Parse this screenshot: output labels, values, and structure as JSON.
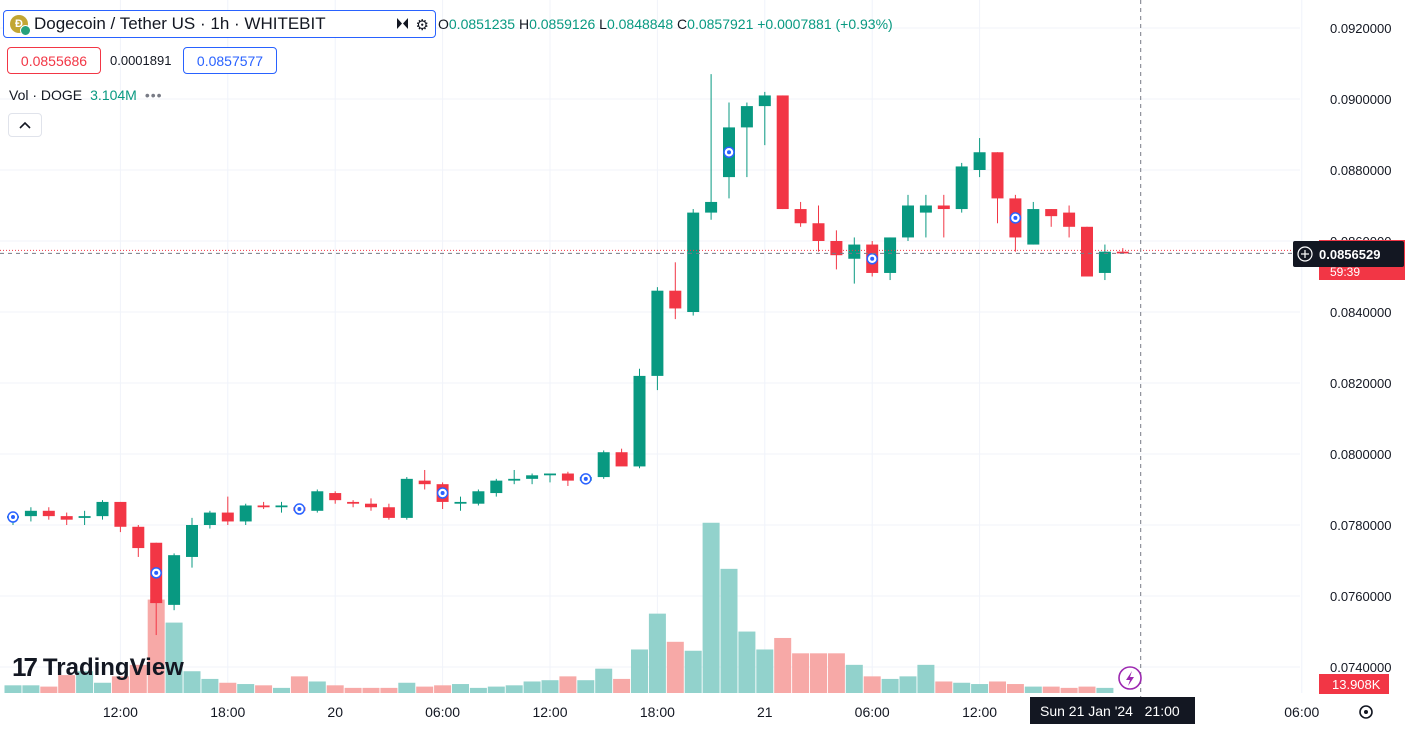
{
  "header": {
    "symbol_title": "Dogecoin / Tether US · 1h · WHITEBIT",
    "symbol_icon": "dogecoin-icon",
    "ohlc": {
      "o_label": "O",
      "o": "0.0851235",
      "h_label": "H",
      "h": "0.0859126",
      "l_label": "L",
      "l": "0.0848848",
      "c_label": "C",
      "c": "0.0857921",
      "change": "+0.0007881 (+0.93%)"
    },
    "sell_price": "0.0855686",
    "spread": "0.0001891",
    "buy_price": "0.0857577",
    "volume_label": "Vol · DOGE",
    "volume_value": "3.104M",
    "dots": "•••"
  },
  "logo_text": "TradingView",
  "colors": {
    "up": "#089981",
    "down": "#f23645",
    "up_vol": "#92d2cc",
    "down_vol": "#f7a9a7",
    "grid": "#f0f3fa",
    "accent": "#2962ff"
  },
  "price_axis": {
    "ticks": [
      "0.0920000",
      "0.0900000",
      "0.0880000",
      "0.0860000",
      "0.0840000",
      "0.0820000",
      "0.0800000",
      "0.0780000",
      "0.0760000",
      "0.0740000"
    ],
    "tick_values": [
      0.092,
      0.09,
      0.088,
      0.086,
      0.084,
      0.082,
      0.08,
      0.078,
      0.076,
      0.074
    ],
    "last_price": "0.0856529",
    "countdown": "59:39",
    "volume_badge": "13.908K"
  },
  "time_axis": {
    "labels": [
      {
        "text": "12:00",
        "hour": 6
      },
      {
        "text": "18:00",
        "hour": 12
      },
      {
        "text": "20",
        "hour": 18
      },
      {
        "text": "06:00",
        "hour": 24
      },
      {
        "text": "12:00",
        "hour": 30
      },
      {
        "text": "18:00",
        "hour": 36
      },
      {
        "text": "21",
        "hour": 42
      },
      {
        "text": "06:00",
        "hour": 48
      },
      {
        "text": "12:00",
        "hour": 54
      },
      {
        "text": "06:00",
        "hour": 72
      }
    ],
    "crosshair_label": "Sun 21 Jan '24   21:00",
    "crosshair_hour": 63
  },
  "chart_data": {
    "type": "candlestick",
    "symbol": "DOGE/USDT",
    "interval": "1h",
    "x_start": "19 Jan 06:00",
    "y_range": [
      0.0734,
      0.0924
    ],
    "candles": [
      {
        "o": 0.0782,
        "h": 0.07835,
        "l": 0.078,
        "c": 0.07825,
        "v": 6
      },
      {
        "o": 0.07825,
        "h": 0.0785,
        "l": 0.0781,
        "c": 0.0784,
        "v": 6
      },
      {
        "o": 0.0784,
        "h": 0.0785,
        "l": 0.07815,
        "c": 0.07825,
        "v": 5
      },
      {
        "o": 0.07825,
        "h": 0.07835,
        "l": 0.078,
        "c": 0.07815,
        "v": 14
      },
      {
        "o": 0.0782,
        "h": 0.0784,
        "l": 0.078,
        "c": 0.07825,
        "v": 17
      },
      {
        "o": 0.07825,
        "h": 0.0787,
        "l": 0.07815,
        "c": 0.07865,
        "v": 8
      },
      {
        "o": 0.07865,
        "h": 0.07865,
        "l": 0.0778,
        "c": 0.07795,
        "v": 13
      },
      {
        "o": 0.07795,
        "h": 0.078,
        "l": 0.0771,
        "c": 0.07735,
        "v": 22
      },
      {
        "o": 0.0775,
        "h": 0.0775,
        "l": 0.0749,
        "c": 0.0758,
        "v": 73
      },
      {
        "o": 0.07575,
        "h": 0.0772,
        "l": 0.0756,
        "c": 0.07715,
        "v": 55
      },
      {
        "o": 0.0771,
        "h": 0.0782,
        "l": 0.0768,
        "c": 0.078,
        "v": 17
      },
      {
        "o": 0.078,
        "h": 0.0784,
        "l": 0.0779,
        "c": 0.07835,
        "v": 11
      },
      {
        "o": 0.07835,
        "h": 0.0788,
        "l": 0.078,
        "c": 0.0781,
        "v": 8
      },
      {
        "o": 0.0781,
        "h": 0.0786,
        "l": 0.078,
        "c": 0.07855,
        "v": 7
      },
      {
        "o": 0.07855,
        "h": 0.07865,
        "l": 0.07845,
        "c": 0.0785,
        "v": 6
      },
      {
        "o": 0.0785,
        "h": 0.07865,
        "l": 0.07835,
        "c": 0.07855,
        "v": 4
      },
      {
        "o": 0.0785,
        "h": 0.0786,
        "l": 0.0783,
        "c": 0.0784,
        "v": 13
      },
      {
        "o": 0.0784,
        "h": 0.079,
        "l": 0.07835,
        "c": 0.07895,
        "v": 9
      },
      {
        "o": 0.0789,
        "h": 0.07895,
        "l": 0.0786,
        "c": 0.0787,
        "v": 6
      },
      {
        "o": 0.07865,
        "h": 0.0787,
        "l": 0.0785,
        "c": 0.0786,
        "v": 4
      },
      {
        "o": 0.0786,
        "h": 0.07875,
        "l": 0.0784,
        "c": 0.0785,
        "v": 4
      },
      {
        "o": 0.0785,
        "h": 0.0786,
        "l": 0.07815,
        "c": 0.0782,
        "v": 4
      },
      {
        "o": 0.0782,
        "h": 0.07935,
        "l": 0.07815,
        "c": 0.0793,
        "v": 8
      },
      {
        "o": 0.07925,
        "h": 0.07955,
        "l": 0.079,
        "c": 0.07915,
        "v": 5
      },
      {
        "o": 0.07915,
        "h": 0.0792,
        "l": 0.07845,
        "c": 0.07865,
        "v": 6
      },
      {
        "o": 0.0786,
        "h": 0.0788,
        "l": 0.0784,
        "c": 0.07865,
        "v": 7
      },
      {
        "o": 0.0786,
        "h": 0.079,
        "l": 0.07855,
        "c": 0.07895,
        "v": 4
      },
      {
        "o": 0.0789,
        "h": 0.0793,
        "l": 0.0788,
        "c": 0.07925,
        "v": 5
      },
      {
        "o": 0.07925,
        "h": 0.07955,
        "l": 0.07915,
        "c": 0.0793,
        "v": 6
      },
      {
        "o": 0.0793,
        "h": 0.07945,
        "l": 0.07915,
        "c": 0.0794,
        "v": 9
      },
      {
        "o": 0.0794,
        "h": 0.07945,
        "l": 0.0792,
        "c": 0.07945,
        "v": 10
      },
      {
        "o": 0.07945,
        "h": 0.0795,
        "l": 0.0791,
        "c": 0.07925,
        "v": 13
      },
      {
        "o": 0.07925,
        "h": 0.07945,
        "l": 0.07915,
        "c": 0.07935,
        "v": 10
      },
      {
        "o": 0.07935,
        "h": 0.0801,
        "l": 0.0793,
        "c": 0.08005,
        "v": 19
      },
      {
        "o": 0.08005,
        "h": 0.08015,
        "l": 0.0797,
        "c": 0.07965,
        "v": 11
      },
      {
        "o": 0.07965,
        "h": 0.0824,
        "l": 0.0796,
        "c": 0.0822,
        "v": 34
      },
      {
        "o": 0.0822,
        "h": 0.0847,
        "l": 0.0818,
        "c": 0.0846,
        "v": 62
      },
      {
        "o": 0.0846,
        "h": 0.0854,
        "l": 0.0838,
        "c": 0.0841,
        "v": 40
      },
      {
        "o": 0.084,
        "h": 0.0869,
        "l": 0.0839,
        "c": 0.0868,
        "v": 33
      },
      {
        "o": 0.0868,
        "h": 0.0907,
        "l": 0.0866,
        "c": 0.0871,
        "v": 133
      },
      {
        "o": 0.0878,
        "h": 0.0899,
        "l": 0.0872,
        "c": 0.0892,
        "v": 97
      },
      {
        "o": 0.0892,
        "h": 0.0899,
        "l": 0.0878,
        "c": 0.0898,
        "v": 48
      },
      {
        "o": 0.0898,
        "h": 0.0902,
        "l": 0.0887,
        "c": 0.0901,
        "v": 34
      },
      {
        "o": 0.0901,
        "h": 0.0901,
        "l": 0.0869,
        "c": 0.0869,
        "v": 43
      },
      {
        "o": 0.0869,
        "h": 0.0871,
        "l": 0.0864,
        "c": 0.0865,
        "v": 31
      },
      {
        "o": 0.0865,
        "h": 0.087,
        "l": 0.0857,
        "c": 0.086,
        "v": 31
      },
      {
        "o": 0.086,
        "h": 0.0863,
        "l": 0.0852,
        "c": 0.0856,
        "v": 31
      },
      {
        "o": 0.0855,
        "h": 0.0861,
        "l": 0.0848,
        "c": 0.0859,
        "v": 22
      },
      {
        "o": 0.0859,
        "h": 0.086,
        "l": 0.085,
        "c": 0.0851,
        "v": 13
      },
      {
        "o": 0.0851,
        "h": 0.0861,
        "l": 0.0849,
        "c": 0.0861,
        "v": 11
      },
      {
        "o": 0.0861,
        "h": 0.0873,
        "l": 0.086,
        "c": 0.087,
        "v": 13
      },
      {
        "o": 0.0868,
        "h": 0.0873,
        "l": 0.0861,
        "c": 0.087,
        "v": 22
      },
      {
        "o": 0.087,
        "h": 0.0873,
        "l": 0.0861,
        "c": 0.0869,
        "v": 9
      },
      {
        "o": 0.0869,
        "h": 0.0882,
        "l": 0.0868,
        "c": 0.0881,
        "v": 8
      },
      {
        "o": 0.088,
        "h": 0.0889,
        "l": 0.0878,
        "c": 0.0885,
        "v": 7
      },
      {
        "o": 0.0885,
        "h": 0.0885,
        "l": 0.0865,
        "c": 0.0872,
        "v": 9
      },
      {
        "o": 0.0872,
        "h": 0.0873,
        "l": 0.0857,
        "c": 0.0861,
        "v": 7
      },
      {
        "o": 0.0859,
        "h": 0.0871,
        "l": 0.0859,
        "c": 0.0869,
        "v": 5
      },
      {
        "o": 0.0869,
        "h": 0.0869,
        "l": 0.0864,
        "c": 0.0867,
        "v": 5
      },
      {
        "o": 0.0868,
        "h": 0.087,
        "l": 0.0861,
        "c": 0.0864,
        "v": 4
      },
      {
        "o": 0.0864,
        "h": 0.0864,
        "l": 0.085,
        "c": 0.085,
        "v": 5
      },
      {
        "o": 0.0851,
        "h": 0.0859,
        "l": 0.0849,
        "c": 0.0857,
        "v": 4
      },
      {
        "o": 0.0857,
        "h": 0.0858,
        "l": 0.08565,
        "c": 0.08565,
        "v": 0
      }
    ],
    "markers": [
      0,
      8,
      16,
      24,
      32,
      40,
      48,
      56
    ]
  }
}
